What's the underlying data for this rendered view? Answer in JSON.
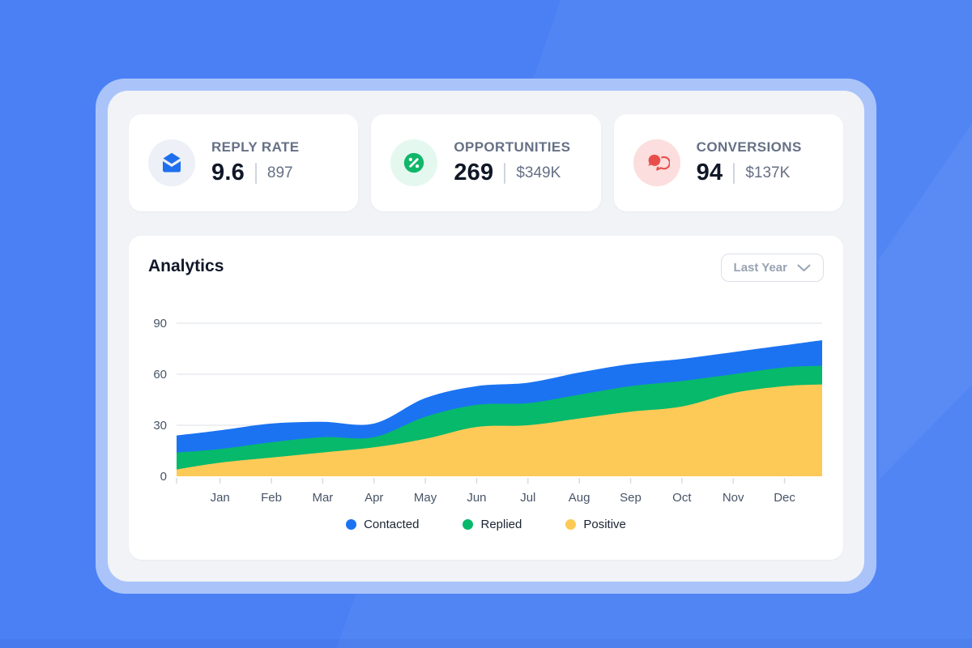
{
  "background": {
    "base_color": "#4a80f4",
    "frame_color": "#aac4fa",
    "panel_color": "#f1f3f7"
  },
  "stat_cards": [
    {
      "label": "REPLY RATE",
      "value": "9.6",
      "secondary": "897",
      "icon": "mail-icon",
      "icon_color": "#1d6fee",
      "icon_bg": "#edf0f6"
    },
    {
      "label": "OPPORTUNITIES",
      "value": "269",
      "secondary": "$349K",
      "icon": "percent-icon",
      "icon_color": "#10b76a",
      "icon_bg": "#e4f8ef"
    },
    {
      "label": "CONVERSIONS",
      "value": "94",
      "secondary": "$137K",
      "icon": "chat-bubbles-icon",
      "icon_color": "#e84f4c",
      "icon_bg": "#fbdedd"
    }
  ],
  "analytics": {
    "title": "Analytics",
    "range_selector": {
      "value": "Last Year",
      "icon": "chevron-down-icon"
    },
    "chart_data": {
      "type": "area",
      "title": "Analytics",
      "categories": [
        "Jan",
        "Feb",
        "Mar",
        "Apr",
        "May",
        "Jun",
        "Jul",
        "Aug",
        "Sep",
        "Oct",
        "Nov",
        "Dec"
      ],
      "x_points": [
        "start",
        "Jan",
        "Feb",
        "Mar",
        "Apr",
        "May",
        "Jun",
        "Jul",
        "Aug",
        "Sep",
        "Oct",
        "Nov",
        "Dec",
        "end"
      ],
      "series": [
        {
          "name": "Contacted",
          "color": "#1b73f2",
          "values": [
            24,
            27,
            31,
            32,
            31,
            46,
            53,
            55,
            61,
            66,
            69,
            73,
            77,
            80
          ]
        },
        {
          "name": "Replied",
          "color": "#07b96b",
          "values": [
            14,
            16,
            20,
            23,
            23,
            35,
            42,
            43,
            48,
            53,
            56,
            60,
            64,
            65
          ]
        },
        {
          "name": "Positive",
          "color": "#fdca57",
          "values": [
            4,
            8,
            11,
            14,
            17,
            22,
            29,
            30,
            34,
            38,
            41,
            49,
            53,
            54
          ]
        }
      ],
      "y_ticks": [
        0,
        30,
        60,
        90
      ],
      "ylim": [
        0,
        90
      ],
      "grid": true,
      "grid_color": "#e7eaee",
      "tick_color": "#d6dbe2",
      "axis_text_color": "#475467",
      "legend_position": "bottom",
      "area_style": "overlapping-smooth"
    }
  }
}
